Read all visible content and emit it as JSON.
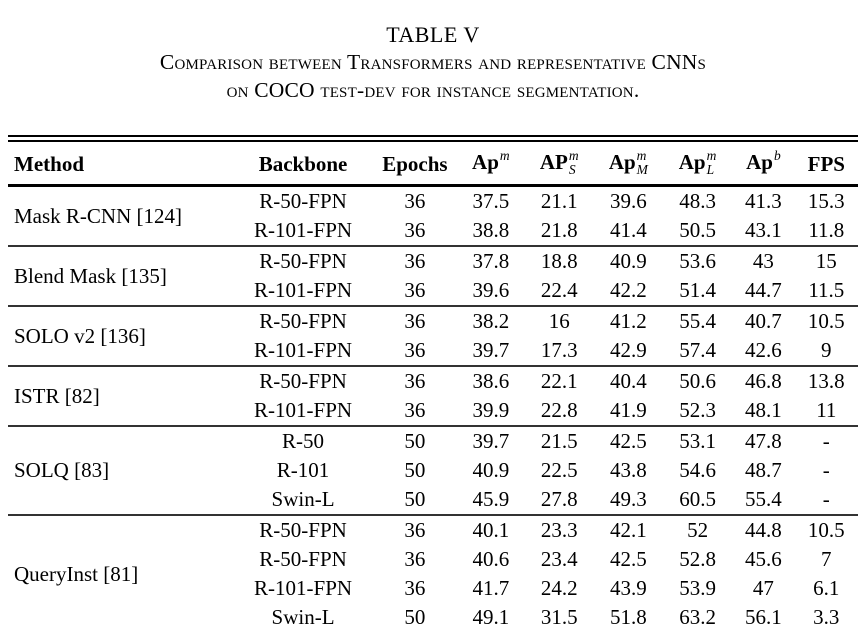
{
  "caption": {
    "label": "TABLE V",
    "line1": "Comparison between Transformers and representative CNNs",
    "line2": "on COCO test-dev for instance segmentation."
  },
  "table": {
    "headers": [
      {
        "id": "method",
        "text": "Method",
        "sup": "",
        "sub": ""
      },
      {
        "id": "backbone",
        "text": "Backbone",
        "sup": "",
        "sub": ""
      },
      {
        "id": "epochs",
        "text": "Epochs",
        "sup": "",
        "sub": ""
      },
      {
        "id": "ap-m",
        "text": "Ap",
        "sup": "m",
        "sub": ""
      },
      {
        "id": "ap-m-s",
        "text": "AP",
        "sup": "m",
        "sub": "S"
      },
      {
        "id": "ap-m-m",
        "text": "Ap",
        "sup": "m",
        "sub": "M"
      },
      {
        "id": "ap-m-l",
        "text": "Ap",
        "sup": "m",
        "sub": "L"
      },
      {
        "id": "ap-b",
        "text": "Ap",
        "sup": "b",
        "sub": ""
      },
      {
        "id": "fps",
        "text": "FPS",
        "sup": "",
        "sub": ""
      }
    ],
    "groups": [
      {
        "method": "Mask R-CNN [124]",
        "rows": [
          [
            "R-50-FPN",
            "36",
            "37.5",
            "21.1",
            "39.6",
            "48.3",
            "41.3",
            "15.3"
          ],
          [
            "R-101-FPN",
            "36",
            "38.8",
            "21.8",
            "41.4",
            "50.5",
            "43.1",
            "11.8"
          ]
        ]
      },
      {
        "method": "Blend Mask [135]",
        "rows": [
          [
            "R-50-FPN",
            "36",
            "37.8",
            "18.8",
            "40.9",
            "53.6",
            "43",
            "15"
          ],
          [
            "R-101-FPN",
            "36",
            "39.6",
            "22.4",
            "42.2",
            "51.4",
            "44.7",
            "11.5"
          ]
        ]
      },
      {
        "method": "SOLO v2 [136]",
        "rows": [
          [
            "R-50-FPN",
            "36",
            "38.2",
            "16",
            "41.2",
            "55.4",
            "40.7",
            "10.5"
          ],
          [
            "R-101-FPN",
            "36",
            "39.7",
            "17.3",
            "42.9",
            "57.4",
            "42.6",
            "9"
          ]
        ]
      },
      {
        "method": "ISTR [82]",
        "rows": [
          [
            "R-50-FPN",
            "36",
            "38.6",
            "22.1",
            "40.4",
            "50.6",
            "46.8",
            "13.8"
          ],
          [
            "R-101-FPN",
            "36",
            "39.9",
            "22.8",
            "41.9",
            "52.3",
            "48.1",
            "11"
          ]
        ]
      },
      {
        "method": "SOLQ [83]",
        "rows": [
          [
            "R-50",
            "50",
            "39.7",
            "21.5",
            "42.5",
            "53.1",
            "47.8",
            "-"
          ],
          [
            "R-101",
            "50",
            "40.9",
            "22.5",
            "43.8",
            "54.6",
            "48.7",
            "-"
          ],
          [
            "Swin-L",
            "50",
            "45.9",
            "27.8",
            "49.3",
            "60.5",
            "55.4",
            "-"
          ]
        ]
      },
      {
        "method": "QueryInst [81]",
        "rows": [
          [
            "R-50-FPN",
            "36",
            "40.1",
            "23.3",
            "42.1",
            "52",
            "44.8",
            "10.5"
          ],
          [
            "R-50-FPN",
            "36",
            "40.6",
            "23.4",
            "42.5",
            "52.8",
            "45.6",
            "7"
          ],
          [
            "R-101-FPN",
            "36",
            "41.7",
            "24.2",
            "43.9",
            "53.9",
            "47",
            "6.1"
          ],
          [
            "Swin-L",
            "50",
            "49.1",
            "31.5",
            "51.8",
            "63.2",
            "56.1",
            "3.3"
          ]
        ]
      }
    ]
  },
  "colors": {
    "text": "#000000",
    "rule": "#000000",
    "group_rule": "#333333",
    "background": "#ffffff"
  }
}
